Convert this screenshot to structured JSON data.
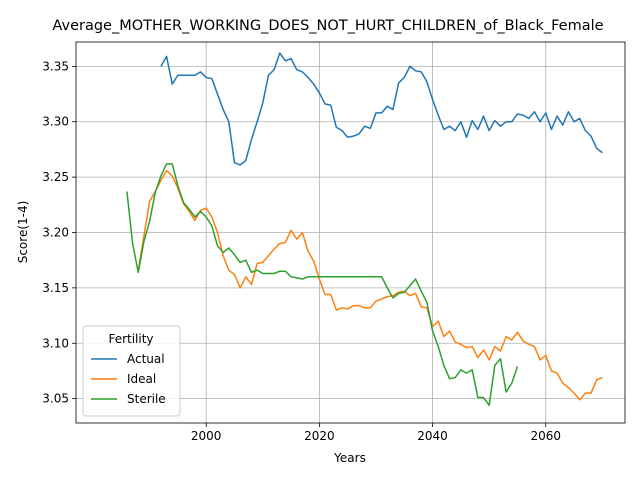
{
  "chart_data": {
    "type": "line",
    "title": "Average_MOTHER_WORKING_DOES_NOT_HURT_CHILDREN_of_Black_Female",
    "xlabel": "Years",
    "ylabel": "Score(1-4)",
    "xlim": [
      1977,
      2074
    ],
    "ylim": [
      3.028,
      3.372
    ],
    "xticks": [
      2000,
      2020,
      2040,
      2060
    ],
    "yticks": [
      3.05,
      3.1,
      3.15,
      3.2,
      3.25,
      3.3,
      3.35
    ],
    "ytick_labels": [
      "3.05",
      "3.10",
      "3.15",
      "3.20",
      "3.25",
      "3.30",
      "3.35"
    ],
    "grid": true,
    "legend": {
      "title": "Fertility",
      "placement": "lower-left"
    },
    "colors": {
      "Actual": "#1f77b4",
      "Ideal": "#ff7f0e",
      "Sterile": "#2ca02c"
    },
    "series": [
      {
        "name": "Actual",
        "x": [
          1992,
          1993,
          1994,
          1995,
          1996,
          1997,
          1998,
          1999,
          2000,
          2001,
          2002,
          2003,
          2004,
          2005,
          2006,
          2007,
          2008,
          2009,
          2010,
          2011,
          2012,
          2013,
          2014,
          2015,
          2016,
          2017,
          2018,
          2019,
          2020,
          2021,
          2022,
          2023,
          2024,
          2025,
          2026,
          2027,
          2028,
          2029,
          2030,
          2031,
          2032,
          2033,
          2034,
          2035,
          2036,
          2037,
          2038,
          2039,
          2040,
          2041,
          2042,
          2043,
          2044,
          2045,
          2046,
          2047,
          2048,
          2049,
          2050,
          2051,
          2052,
          2053,
          2054,
          2055,
          2056,
          2057,
          2058,
          2059,
          2060,
          2061,
          2062,
          2063,
          2064,
          2065,
          2066,
          2067,
          2068,
          2069,
          2070
        ],
        "y": [
          3.35,
          3.359,
          3.334,
          3.342,
          3.342,
          3.342,
          3.342,
          3.345,
          3.34,
          3.339,
          3.325,
          3.311,
          3.3,
          3.263,
          3.261,
          3.265,
          3.284,
          3.3,
          3.317,
          3.342,
          3.347,
          3.362,
          3.355,
          3.357,
          3.347,
          3.345,
          3.34,
          3.334,
          3.326,
          3.316,
          3.315,
          3.295,
          3.292,
          3.286,
          3.287,
          3.289,
          3.296,
          3.294,
          3.308,
          3.308,
          3.314,
          3.311,
          3.335,
          3.34,
          3.35,
          3.346,
          3.345,
          3.336,
          3.32,
          3.306,
          3.293,
          3.296,
          3.292,
          3.3,
          3.286,
          3.301,
          3.293,
          3.305,
          3.292,
          3.301,
          3.296,
          3.3,
          3.3,
          3.307,
          3.306,
          3.303,
          3.309,
          3.3,
          3.308,
          3.293,
          3.305,
          3.297,
          3.309,
          3.3,
          3.303,
          3.292,
          3.287,
          3.276,
          3.272
        ]
      },
      {
        "name": "Ideal",
        "x": [
          1988,
          1989,
          1990,
          1991,
          1992,
          1993,
          1994,
          1995,
          1996,
          1997,
          1998,
          1999,
          2000,
          2001,
          2002,
          2003,
          2004,
          2005,
          2006,
          2007,
          2008,
          2009,
          2010,
          2011,
          2012,
          2013,
          2014,
          2015,
          2016,
          2017,
          2018,
          2019,
          2020,
          2021,
          2022,
          2023,
          2024,
          2025,
          2026,
          2027,
          2028,
          2029,
          2030,
          2031,
          2032,
          2033,
          2034,
          2035,
          2036,
          2037,
          2038,
          2039,
          2040,
          2041,
          2042,
          2043,
          2044,
          2045,
          2046,
          2047,
          2048,
          2049,
          2050,
          2051,
          2052,
          2053,
          2054,
          2055,
          2056,
          2057,
          2058,
          2059,
          2060,
          2061,
          2062,
          2063,
          2064,
          2065,
          2066,
          2067,
          2068,
          2069,
          2070
        ],
        "y": [
          3.166,
          3.197,
          3.228,
          3.237,
          3.247,
          3.256,
          3.251,
          3.24,
          3.226,
          3.219,
          3.211,
          3.22,
          3.222,
          3.214,
          3.2,
          3.179,
          3.166,
          3.162,
          3.15,
          3.16,
          3.153,
          3.172,
          3.173,
          3.179,
          3.185,
          3.19,
          3.191,
          3.202,
          3.194,
          3.2,
          3.183,
          3.174,
          3.158,
          3.144,
          3.144,
          3.13,
          3.132,
          3.131,
          3.134,
          3.134,
          3.132,
          3.132,
          3.138,
          3.14,
          3.142,
          3.143,
          3.146,
          3.147,
          3.143,
          3.145,
          3.133,
          3.132,
          3.115,
          3.12,
          3.106,
          3.111,
          3.101,
          3.099,
          3.096,
          3.097,
          3.087,
          3.094,
          3.085,
          3.097,
          3.093,
          3.106,
          3.103,
          3.11,
          3.102,
          3.099,
          3.097,
          3.085,
          3.089,
          3.075,
          3.073,
          3.064,
          3.06,
          3.055,
          3.049,
          3.055,
          3.055,
          3.067,
          3.069
        ]
      },
      {
        "name": "Sterile",
        "x": [
          1986,
          1987,
          1988,
          1989,
          1990,
          1991,
          1992,
          1993,
          1994,
          1995,
          1996,
          1997,
          1998,
          1999,
          2000,
          2001,
          2002,
          2003,
          2004,
          2005,
          2006,
          2007,
          2008,
          2009,
          2010,
          2011,
          2012,
          2013,
          2014,
          2015,
          2016,
          2017,
          2018,
          2019,
          2020,
          2021,
          2022,
          2023,
          2024,
          2025,
          2026,
          2027,
          2028,
          2029,
          2030,
          2031,
          2032,
          2033,
          2034,
          2035,
          2036,
          2037,
          2038,
          2039,
          2040,
          2041,
          2042,
          2043,
          2044,
          2045,
          2046,
          2047,
          2048,
          2049,
          2050,
          2051,
          2052,
          2053,
          2054,
          2055
        ],
        "y": [
          3.237,
          3.19,
          3.164,
          3.192,
          3.21,
          3.236,
          3.251,
          3.262,
          3.262,
          3.242,
          3.227,
          3.221,
          3.214,
          3.219,
          3.214,
          3.206,
          3.188,
          3.182,
          3.186,
          3.18,
          3.173,
          3.175,
          3.164,
          3.166,
          3.163,
          3.163,
          3.163,
          3.165,
          3.165,
          3.16,
          3.159,
          3.158,
          3.16,
          3.16,
          3.16,
          3.16,
          3.16,
          3.16,
          3.16,
          3.16,
          3.16,
          3.16,
          3.16,
          3.16,
          3.16,
          3.16,
          3.15,
          3.141,
          3.145,
          3.146,
          3.152,
          3.158,
          3.147,
          3.137,
          3.111,
          3.097,
          3.08,
          3.068,
          3.069,
          3.076,
          3.073,
          3.076,
          3.051,
          3.051,
          3.044,
          3.08,
          3.086,
          3.056,
          3.064,
          3.079
        ]
      }
    ]
  }
}
